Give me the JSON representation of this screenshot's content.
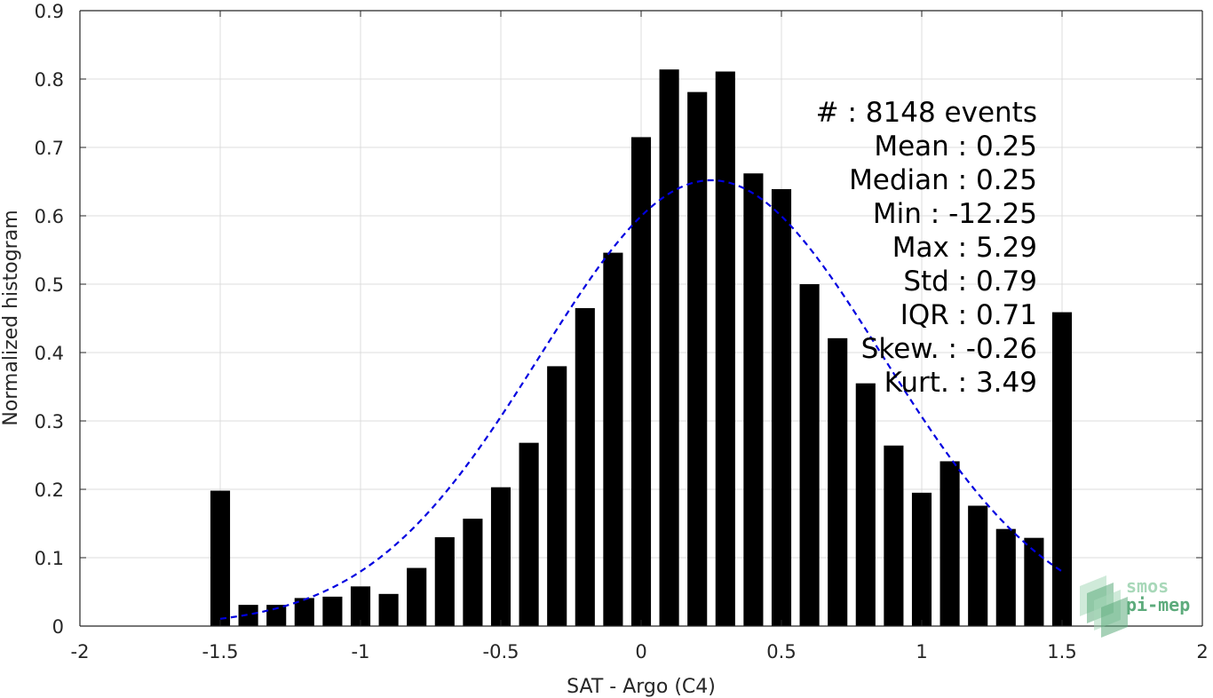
{
  "chart_data": {
    "type": "bar",
    "xlabel": "SAT - Argo (C4)",
    "ylabel": "Normalized histogram",
    "xlim": [
      -2,
      2
    ],
    "ylim": [
      0,
      0.9
    ],
    "xticks": [
      "-2",
      "-1.5",
      "-1",
      "-0.5",
      "0",
      "0.5",
      "1",
      "1.5",
      "2"
    ],
    "yticks": [
      "0",
      "0.1",
      "0.2",
      "0.3",
      "0.4",
      "0.5",
      "0.6",
      "0.7",
      "0.8",
      "0.9"
    ],
    "grid": true,
    "bar_color": "#000000",
    "bar_width": 0.07,
    "bins": [
      -1.5,
      -1.4,
      -1.3,
      -1.2,
      -1.1,
      -1.0,
      -0.9,
      -0.8,
      -0.7,
      -0.6,
      -0.5,
      -0.4,
      -0.3,
      -0.2,
      -0.1,
      0.0,
      0.1,
      0.2,
      0.3,
      0.4,
      0.5,
      0.6,
      0.7,
      0.8,
      0.9,
      1.0,
      1.1,
      1.2,
      1.3,
      1.4,
      1.5
    ],
    "values": [
      0.198,
      0.031,
      0.031,
      0.041,
      0.043,
      0.058,
      0.047,
      0.085,
      0.13,
      0.157,
      0.203,
      0.268,
      0.38,
      0.465,
      0.546,
      0.715,
      0.814,
      0.781,
      0.811,
      0.662,
      0.639,
      0.5,
      0.421,
      0.355,
      0.264,
      0.195,
      0.241,
      0.176,
      0.142,
      0.129,
      0.459
    ],
    "fit": {
      "type": "gaussian",
      "mean": 0.25,
      "std": 0.61,
      "peak": 0.652,
      "x_range": [
        -1.5,
        1.5
      ],
      "color": "#0000e0",
      "style": "dashed"
    },
    "stats": [
      "#  : 8148 events",
      "Mean : 0.25",
      "Median : 0.25",
      "Min : -12.25",
      "Max : 5.29",
      "Std : 0.79",
      "IQR : 0.71",
      "Skew. : -0.26",
      "Kurt. : 3.49"
    ]
  },
  "logo": {
    "line1": "smos",
    "line2": "pi-mep",
    "color_light": "#a8d8b9",
    "color_dark": "#5dab7c"
  }
}
